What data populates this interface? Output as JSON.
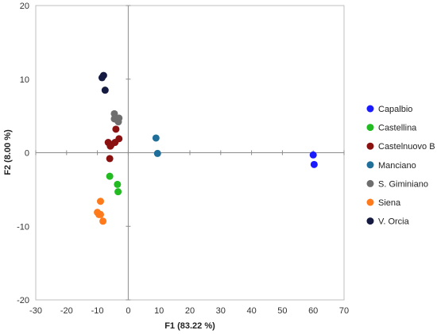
{
  "chart_data": {
    "type": "scatter",
    "xlabel": "F1 (83.22 %)",
    "ylabel": "F2 (8.00 %)",
    "xlim": [
      -30,
      70
    ],
    "ylim": [
      -20,
      20
    ],
    "xticks": [
      -30,
      -20,
      -10,
      0,
      10,
      20,
      30,
      40,
      50,
      60,
      70
    ],
    "yticks": [
      -20,
      -10,
      0,
      10,
      20
    ],
    "grid": false,
    "legend_position": "right",
    "series": [
      {
        "name": "Capalbio",
        "color": "#1a1aff",
        "points": [
          [
            60,
            -0.3
          ],
          [
            60.3,
            -1.6
          ]
        ]
      },
      {
        "name": "Castellina",
        "color": "#22bb22",
        "points": [
          [
            -6,
            -3.2
          ],
          [
            -3.5,
            -4.3
          ],
          [
            -3.3,
            -5.3
          ]
        ]
      },
      {
        "name": "Castelnuovo B",
        "color": "#8b1010",
        "points": [
          [
            -6.5,
            1.4
          ],
          [
            -5.5,
            1.1
          ],
          [
            -4.3,
            1.4
          ],
          [
            -3,
            1.9
          ],
          [
            -4,
            3.2
          ],
          [
            -5.8,
            0.9
          ],
          [
            -6,
            -0.8
          ]
        ]
      },
      {
        "name": "Manciano",
        "color": "#1f6f9a",
        "points": [
          [
            9,
            2
          ],
          [
            9.5,
            -0.1
          ]
        ]
      },
      {
        "name": "S. Giminiano",
        "color": "#6e6e6e",
        "points": [
          [
            -4.5,
            5.3
          ],
          [
            -3,
            4.7
          ],
          [
            -3.5,
            4.4
          ],
          [
            -4.5,
            4.6
          ],
          [
            -3.2,
            4.2
          ]
        ]
      },
      {
        "name": "Siena",
        "color": "#ff7a1a",
        "points": [
          [
            -9,
            -6.6
          ],
          [
            -10,
            -8.1
          ],
          [
            -9.5,
            -8.4
          ],
          [
            -9,
            -8.4
          ],
          [
            -8.2,
            -9.3
          ]
        ]
      },
      {
        "name": "V. Orcia",
        "color": "#141a40",
        "points": [
          [
            -8,
            10.5
          ],
          [
            -8.5,
            10.2
          ],
          [
            -7.5,
            8.5
          ]
        ]
      }
    ]
  }
}
